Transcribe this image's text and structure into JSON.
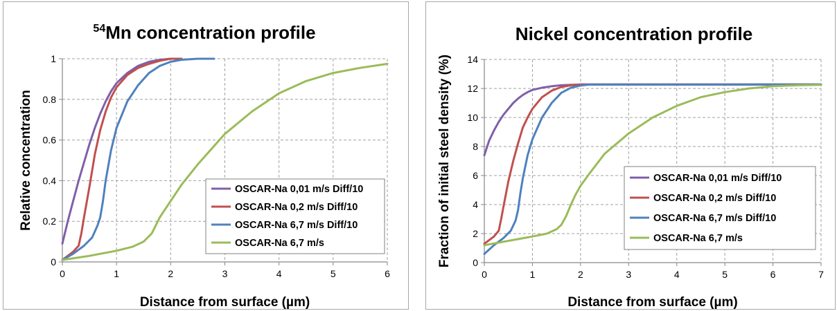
{
  "chart_data": [
    {
      "type": "line",
      "title_sup": "54",
      "title": "Mn concentration profile",
      "xlabel": "Distance from surface (µm)",
      "ylabel": "Relative concentration",
      "xlim": [
        0,
        6
      ],
      "ylim": [
        0,
        1
      ],
      "xticks": [
        "0",
        "1",
        "2",
        "3",
        "4",
        "5",
        "6"
      ],
      "yticks": [
        "0",
        "0.2",
        "0.4",
        "0.6",
        "0.8",
        "1"
      ],
      "grid": true,
      "legend_position": "center-right",
      "series": [
        {
          "name": "OSCAR-Na 0,01 m/s Diff/10",
          "color": "#7f5fa8",
          "x": [
            0,
            0.1,
            0.2,
            0.3,
            0.4,
            0.5,
            0.6,
            0.7,
            0.8,
            0.9,
            1.0,
            1.2,
            1.4,
            1.6,
            1.8,
            2.0,
            2.2
          ],
          "y": [
            0.09,
            0.2,
            0.3,
            0.4,
            0.49,
            0.58,
            0.66,
            0.73,
            0.79,
            0.84,
            0.88,
            0.93,
            0.965,
            0.985,
            0.995,
            1.0,
            1.0
          ]
        },
        {
          "name": "OSCAR-Na 0,2 m/s Diff/10",
          "color": "#c0504d",
          "x": [
            0,
            0.1,
            0.2,
            0.3,
            0.35,
            0.4,
            0.5,
            0.6,
            0.7,
            0.8,
            0.9,
            1.0,
            1.2,
            1.4,
            1.6,
            1.8,
            2.0,
            2.2
          ],
          "y": [
            0.01,
            0.03,
            0.05,
            0.08,
            0.14,
            0.22,
            0.37,
            0.53,
            0.65,
            0.74,
            0.81,
            0.86,
            0.92,
            0.955,
            0.975,
            0.99,
            1.0,
            1.0
          ]
        },
        {
          "name": "OSCAR-Na 6,7 m/s Diff/10",
          "color": "#4f81bd",
          "x": [
            0,
            0.2,
            0.4,
            0.55,
            0.65,
            0.7,
            0.75,
            0.8,
            0.9,
            1.0,
            1.2,
            1.4,
            1.6,
            1.8,
            2.0,
            2.2,
            2.5,
            2.8
          ],
          "y": [
            0.01,
            0.04,
            0.08,
            0.12,
            0.18,
            0.22,
            0.3,
            0.4,
            0.55,
            0.66,
            0.79,
            0.87,
            0.93,
            0.965,
            0.985,
            0.995,
            1.0,
            1.0
          ]
        },
        {
          "name": "OSCAR-Na 6,7 m/s",
          "color": "#9bbb59",
          "x": [
            0,
            0.5,
            1.0,
            1.3,
            1.5,
            1.65,
            1.8,
            2.0,
            2.2,
            2.5,
            3.0,
            3.5,
            4.0,
            4.5,
            5.0,
            5.5,
            6.0
          ],
          "y": [
            0.01,
            0.03,
            0.055,
            0.075,
            0.1,
            0.14,
            0.22,
            0.3,
            0.38,
            0.48,
            0.63,
            0.74,
            0.83,
            0.89,
            0.93,
            0.955,
            0.975
          ]
        }
      ]
    },
    {
      "type": "line",
      "title": "Nickel concentration profile",
      "xlabel": "Distance from surface (µm)",
      "ylabel": "Fraction of initial steel density (%)",
      "xlim": [
        0,
        7
      ],
      "ylim": [
        0,
        14
      ],
      "xticks": [
        "0",
        "1",
        "2",
        "3",
        "4",
        "5",
        "6",
        "7"
      ],
      "yticks": [
        "0",
        "2",
        "4",
        "6",
        "8",
        "10",
        "12",
        "14"
      ],
      "grid": true,
      "legend_position": "center-right",
      "series": [
        {
          "name": "OSCAR-Na 0,01 m/s Diff/10",
          "color": "#7f5fa8",
          "x": [
            0,
            0.1,
            0.2,
            0.3,
            0.4,
            0.5,
            0.6,
            0.7,
            0.8,
            0.9,
            1.0,
            1.2,
            1.4,
            1.6,
            1.8,
            2.0,
            7.0
          ],
          "y": [
            7.4,
            8.4,
            9.1,
            9.7,
            10.2,
            10.6,
            11.0,
            11.3,
            11.55,
            11.75,
            11.9,
            12.05,
            12.15,
            12.22,
            12.25,
            12.27,
            12.27
          ]
        },
        {
          "name": "OSCAR-Na 0,2 m/s Diff/10",
          "color": "#c0504d",
          "x": [
            0,
            0.2,
            0.3,
            0.35,
            0.4,
            0.5,
            0.6,
            0.7,
            0.8,
            0.9,
            1.0,
            1.2,
            1.4,
            1.6,
            1.8,
            2.0,
            7.0
          ],
          "y": [
            1.3,
            1.8,
            2.2,
            3.0,
            3.9,
            5.6,
            7.0,
            8.2,
            9.3,
            10.0,
            10.6,
            11.4,
            11.85,
            12.1,
            12.22,
            12.27,
            12.27
          ]
        },
        {
          "name": "OSCAR-Na 6,7 m/s Diff/10",
          "color": "#4f81bd",
          "x": [
            0,
            0.2,
            0.4,
            0.55,
            0.65,
            0.7,
            0.75,
            0.8,
            0.9,
            1.0,
            1.2,
            1.4,
            1.6,
            1.8,
            2.0,
            2.2,
            7.0
          ],
          "y": [
            0.6,
            1.2,
            1.7,
            2.2,
            2.9,
            3.6,
            4.8,
            5.8,
            7.4,
            8.5,
            10.0,
            11.0,
            11.7,
            12.05,
            12.2,
            12.27,
            12.27
          ]
        },
        {
          "name": "OSCAR-Na 6,7 m/s",
          "color": "#9bbb59",
          "x": [
            0,
            0.5,
            1.0,
            1.3,
            1.5,
            1.6,
            1.7,
            1.8,
            1.9,
            2.0,
            2.2,
            2.5,
            3.0,
            3.5,
            4.0,
            4.5,
            5.0,
            5.5,
            6.0,
            6.5,
            7.0
          ],
          "y": [
            1.2,
            1.5,
            1.8,
            2.0,
            2.3,
            2.6,
            3.2,
            4.0,
            4.7,
            5.3,
            6.2,
            7.5,
            8.9,
            10.0,
            10.8,
            11.4,
            11.75,
            12.0,
            12.15,
            12.22,
            12.25
          ]
        }
      ]
    }
  ]
}
